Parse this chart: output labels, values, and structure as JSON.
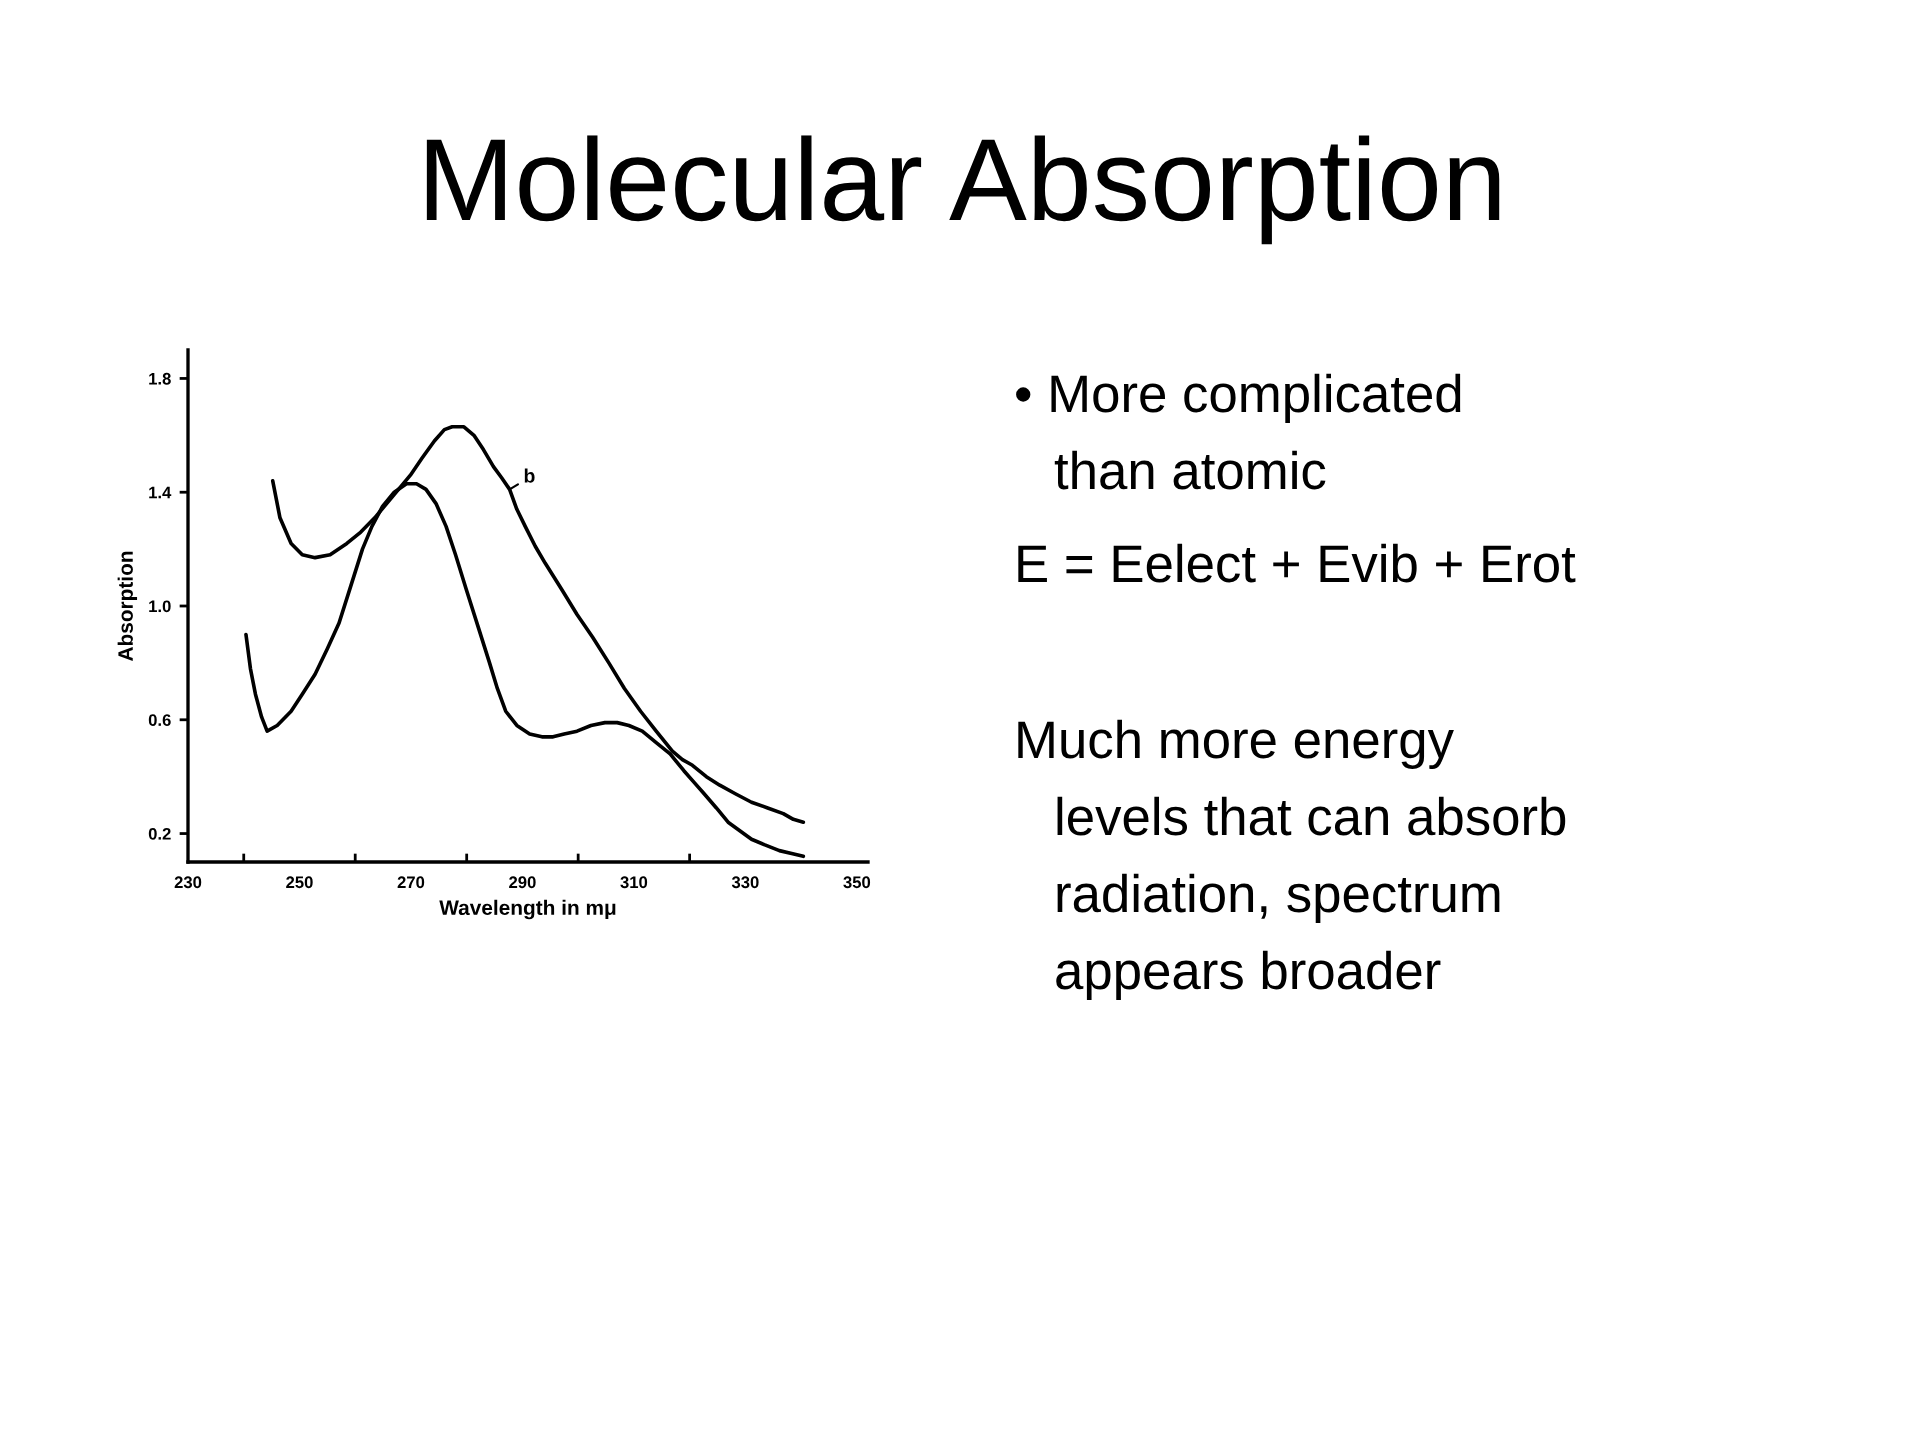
{
  "chart_data": {
    "type": "line",
    "title": "Molecular Absorption",
    "xlabel": "Wavelength in mμ",
    "ylabel": "Absorption",
    "series": [
      {
        "color": "#000000",
        "x": [
          240.4,
          241.2,
          242.1,
          243.2,
          244.2,
          246.0,
          248.5,
          250.5,
          252.8,
          255.0,
          257.1,
          259.2,
          261.3,
          263.0,
          264.9,
          267.0,
          269.2,
          271.0,
          272.7,
          274.5,
          276.3,
          278.0,
          279.9,
          282.0,
          284.1,
          285.5,
          287.0,
          289.0,
          291.3,
          293.5,
          295.5,
          297.5,
          299.8,
          302.3,
          304.8,
          307.0,
          309.1,
          311.5,
          314.0,
          316.5,
          319.0,
          320.8,
          322.6,
          324.8,
          326.9,
          329.0,
          331.1,
          333.5,
          336.1,
          338.3,
          340.4
        ],
        "values": [
          0.9,
          0.78,
          0.69,
          0.61,
          0.56,
          0.58,
          0.63,
          0.69,
          0.76,
          0.85,
          0.94,
          1.07,
          1.2,
          1.28,
          1.35,
          1.4,
          1.43,
          1.43,
          1.41,
          1.36,
          1.28,
          1.18,
          1.06,
          0.93,
          0.8,
          0.71,
          0.63,
          0.58,
          0.55,
          0.54,
          0.54,
          0.55,
          0.56,
          0.58,
          0.59,
          0.59,
          0.58,
          0.56,
          0.52,
          0.48,
          0.42,
          0.38,
          0.34,
          0.29,
          0.24,
          0.21,
          0.18,
          0.16,
          0.14,
          0.13,
          0.12
        ]
      },
      {
        "color": "#000000",
        "x": [
          245.2,
          246.5,
          248.5,
          250.5,
          252.8,
          255.5,
          258.5,
          261.0,
          263.5,
          266.5,
          269.9,
          272.0,
          274.2,
          276.0,
          277.4,
          279.5,
          281.3,
          283.0,
          284.8,
          286.3,
          287.7,
          289.0,
          290.5,
          292.3,
          294.1,
          297.0,
          299.8,
          302.6,
          305.5,
          308.3,
          311.2,
          314.0,
          316.9,
          318.7,
          320.5,
          323.0,
          325.4,
          328.2,
          331.1,
          334.0,
          336.8,
          338.6,
          340.4
        ],
        "values": [
          1.44,
          1.31,
          1.22,
          1.18,
          1.17,
          1.18,
          1.22,
          1.26,
          1.31,
          1.38,
          1.46,
          1.52,
          1.58,
          1.62,
          1.63,
          1.63,
          1.6,
          1.55,
          1.49,
          1.45,
          1.41,
          1.34,
          1.28,
          1.21,
          1.15,
          1.06,
          0.97,
          0.89,
          0.8,
          0.71,
          0.63,
          0.56,
          0.49,
          0.46,
          0.44,
          0.4,
          0.37,
          0.34,
          0.31,
          0.29,
          0.27,
          0.25,
          0.24
        ]
      }
    ],
    "xlim": [
      230,
      352
    ],
    "ylim": [
      0.1,
      1.9
    ],
    "xticks": [
      230,
      {
        "value": 240,
        "label": null
      },
      250,
      {
        "value": 260,
        "label": null
      },
      270,
      {
        "value": 280,
        "label": null
      },
      290,
      {
        "value": 300,
        "label": null
      },
      310,
      {
        "value": 320,
        "label": null
      },
      330,
      350
    ],
    "yticks": [
      0.2,
      0.6,
      {
        "value": 1.0,
        "label": "1.0"
      },
      1.4,
      1.8
    ],
    "annotations": [
      {
        "text": "b",
        "x": 287.7,
        "y": 1.41
      },
      "• More complicated\nthan atomic",
      "E = Eelect + Evib + Erot",
      "Much more energy\nlevels that can absorb\nradiation, spectrum\nappears broader"
    ]
  }
}
